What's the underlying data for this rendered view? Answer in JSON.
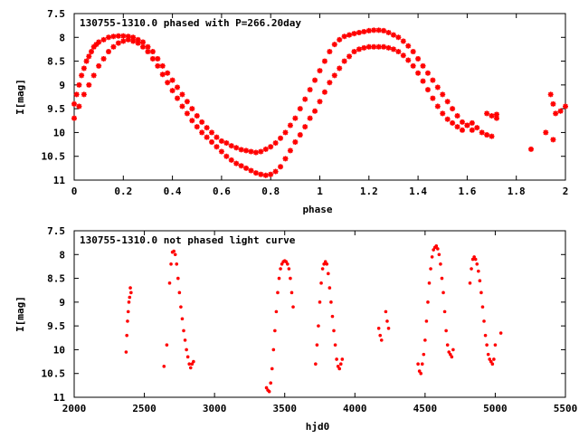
{
  "chart_data": [
    {
      "type": "scatter",
      "title": "130755-1310.0 phased with P=266.20day",
      "xlabel": "phase",
      "ylabel": "I[mag]",
      "xlim": [
        0,
        2
      ],
      "ylim": [
        11,
        7.5
      ],
      "y_inverted": true,
      "xticks": [
        "0",
        "0.2",
        "0.4",
        "0.6",
        "0.8",
        "1",
        "1.2",
        "1.4",
        "1.6",
        "1.8",
        "2"
      ],
      "yticks": [
        "7.5",
        "8",
        "8.5",
        "9",
        "9.5",
        "10",
        "10.5",
        "11"
      ],
      "marker_color": "#ff0000",
      "grid": false,
      "series": [
        {
          "x": [
            0.0,
            0.01,
            0.02,
            0.03,
            0.04,
            0.05,
            0.06,
            0.07,
            0.08,
            0.09,
            0.1,
            0.12,
            0.14,
            0.16,
            0.18,
            0.2,
            0.22,
            0.24,
            0.26,
            0.28,
            0.3,
            0.32,
            0.34,
            0.36,
            0.38,
            0.4,
            0.42,
            0.44,
            0.46,
            0.48,
            0.5,
            0.52,
            0.54,
            0.56,
            0.58,
            0.6,
            0.62,
            0.64,
            0.66,
            0.68,
            0.7,
            0.72,
            0.74,
            0.76,
            0.78,
            0.8,
            0.82,
            0.84,
            0.86,
            0.88,
            0.9,
            0.92,
            0.94,
            0.96,
            0.98,
            1.0,
            1.02,
            1.04,
            1.06,
            1.08,
            1.1,
            1.12,
            1.14,
            1.16,
            1.18,
            1.2,
            1.22,
            1.24,
            1.26,
            1.28,
            1.3,
            1.32,
            1.34,
            1.36,
            1.38,
            1.4,
            1.42,
            1.44,
            1.46,
            1.48,
            1.5,
            1.52,
            1.54,
            1.56,
            1.58,
            1.6,
            1.62,
            1.68,
            1.7,
            1.72,
            1.94,
            1.95,
            1.96
          ],
          "y": [
            9.4,
            9.2,
            9.0,
            8.8,
            8.65,
            8.5,
            8.4,
            8.3,
            8.2,
            8.15,
            8.1,
            8.05,
            8.0,
            7.98,
            7.97,
            7.97,
            7.98,
            8.0,
            8.05,
            8.1,
            8.2,
            8.3,
            8.45,
            8.6,
            8.75,
            8.9,
            9.05,
            9.2,
            9.35,
            9.5,
            9.65,
            9.78,
            9.9,
            10.0,
            10.1,
            10.18,
            10.22,
            10.28,
            10.32,
            10.36,
            10.38,
            10.4,
            10.42,
            10.4,
            10.35,
            10.3,
            10.22,
            10.12,
            10.0,
            9.85,
            9.7,
            9.5,
            9.3,
            9.1,
            8.9,
            8.7,
            8.5,
            8.3,
            8.15,
            8.05,
            7.98,
            7.95,
            7.92,
            7.9,
            7.88,
            7.86,
            7.85,
            7.85,
            7.86,
            7.9,
            7.95,
            8.0,
            8.08,
            8.18,
            8.3,
            8.45,
            8.6,
            8.75,
            8.9,
            9.05,
            9.2,
            9.35,
            9.5,
            9.65,
            9.78,
            9.85,
            9.95,
            9.6,
            9.65,
            9.7,
            9.2,
            9.4,
            9.6
          ]
        },
        {
          "x": [
            0.0,
            0.02,
            0.04,
            0.06,
            0.08,
            0.1,
            0.12,
            0.14,
            0.16,
            0.18,
            0.2,
            0.22,
            0.24,
            0.26,
            0.28,
            0.3,
            0.32,
            0.34,
            0.36,
            0.38,
            0.4,
            0.42,
            0.44,
            0.46,
            0.48,
            0.5,
            0.52,
            0.54,
            0.56,
            0.58,
            0.6,
            0.62,
            0.64,
            0.66,
            0.68,
            0.7,
            0.72,
            0.74,
            0.76,
            0.78,
            0.8,
            0.82,
            0.84,
            0.86,
            0.88,
            0.9,
            0.92,
            0.94,
            0.96,
            0.98,
            1.0,
            1.02,
            1.04,
            1.06,
            1.08,
            1.1,
            1.12,
            1.14,
            1.16,
            1.18,
            1.2,
            1.22,
            1.24,
            1.26,
            1.28,
            1.3,
            1.32,
            1.34,
            1.36,
            1.38,
            1.4,
            1.42,
            1.44,
            1.46,
            1.48,
            1.5,
            1.52,
            1.54,
            1.56,
            1.58,
            1.6,
            1.62,
            1.64,
            1.66,
            1.68,
            1.7,
            1.72,
            1.86,
            1.92,
            1.95,
            1.98,
            2.0
          ],
          "y": [
            9.7,
            9.45,
            9.2,
            9.0,
            8.8,
            8.6,
            8.45,
            8.3,
            8.2,
            8.12,
            8.08,
            8.05,
            8.08,
            8.12,
            8.2,
            8.3,
            8.45,
            8.6,
            8.78,
            8.95,
            9.12,
            9.28,
            9.45,
            9.6,
            9.75,
            9.88,
            10.0,
            10.1,
            10.2,
            10.3,
            10.4,
            10.5,
            10.58,
            10.65,
            10.7,
            10.75,
            10.8,
            10.85,
            10.88,
            10.9,
            10.88,
            10.82,
            10.72,
            10.55,
            10.38,
            10.2,
            10.05,
            9.88,
            9.7,
            9.55,
            9.35,
            9.15,
            8.95,
            8.8,
            8.65,
            8.5,
            8.4,
            8.3,
            8.25,
            8.22,
            8.2,
            8.2,
            8.2,
            8.2,
            8.22,
            8.25,
            8.3,
            8.38,
            8.48,
            8.6,
            8.75,
            8.92,
            9.1,
            9.28,
            9.45,
            9.6,
            9.72,
            9.8,
            9.88,
            9.95,
            9.85,
            9.8,
            9.9,
            10.0,
            10.05,
            10.08,
            9.62,
            10.35,
            10.0,
            10.15,
            9.55,
            9.45
          ]
        }
      ]
    },
    {
      "type": "scatter",
      "title": "130755-1310.0 not phased light curve",
      "xlabel": "hjd0",
      "ylabel": "I[mag]",
      "xlim": [
        2000,
        5500
      ],
      "ylim": [
        11,
        7.5
      ],
      "y_inverted": true,
      "xticks": [
        "2000",
        "2500",
        "3000",
        "3500",
        "4000",
        "4500",
        "5000",
        "5500"
      ],
      "yticks": [
        "7.5",
        "8",
        "8.5",
        "9",
        "9.5",
        "10",
        "10.5",
        "11"
      ],
      "marker_color": "#ff0000",
      "grid": false,
      "series": [
        {
          "x": [
            2370,
            2375,
            2380,
            2385,
            2390,
            2395,
            2400,
            2405,
            2640,
            2660,
            2680,
            2690,
            2700,
            2710,
            2720,
            2730,
            2740,
            2750,
            2760,
            2770,
            2780,
            2790,
            2800,
            2810,
            2820,
            2830,
            2840,
            2850,
            3370,
            3380,
            3390,
            3400,
            3410,
            3420,
            3430,
            3440,
            3450,
            3460,
            3470,
            3480,
            3490,
            3500,
            3510,
            3520,
            3530,
            3540,
            3550,
            3560,
            3720,
            3730,
            3740,
            3750,
            3760,
            3770,
            3780,
            3790,
            3800,
            3810,
            3820,
            3830,
            3840,
            3850,
            3860,
            3870,
            3880,
            3890,
            3900,
            3910,
            4170,
            4180,
            4190,
            4220,
            4230,
            4240,
            4450,
            4460,
            4470,
            4480,
            4490,
            4500,
            4510,
            4520,
            4530,
            4540,
            4550,
            4560,
            4570,
            4580,
            4590,
            4600,
            4610,
            4620,
            4630,
            4640,
            4650,
            4660,
            4670,
            4680,
            4690,
            4700,
            4820,
            4830,
            4840,
            4850,
            4860,
            4870,
            4880,
            4890,
            4900,
            4910,
            4920,
            4930,
            4940,
            4950,
            4960,
            4970,
            4980,
            4990,
            5000,
            5040
          ],
          "y": [
            10.05,
            9.7,
            9.4,
            9.2,
            9.0,
            8.9,
            8.7,
            8.8,
            10.35,
            9.9,
            8.6,
            8.2,
            7.95,
            7.93,
            8.0,
            8.2,
            8.5,
            8.8,
            9.1,
            9.35,
            9.6,
            9.8,
            10.0,
            10.15,
            10.3,
            10.38,
            10.3,
            10.25,
            10.8,
            10.85,
            10.88,
            10.7,
            10.4,
            10.0,
            9.6,
            9.2,
            8.8,
            8.5,
            8.3,
            8.2,
            8.15,
            8.13,
            8.15,
            8.2,
            8.3,
            8.5,
            8.8,
            9.1,
            10.3,
            9.9,
            9.5,
            9.0,
            8.6,
            8.3,
            8.2,
            8.15,
            8.2,
            8.4,
            8.7,
            9.0,
            9.3,
            9.6,
            9.9,
            10.2,
            10.35,
            10.4,
            10.3,
            10.2,
            9.55,
            9.7,
            9.8,
            9.2,
            9.4,
            9.55,
            10.3,
            10.45,
            10.5,
            10.3,
            10.1,
            9.8,
            9.4,
            9.0,
            8.6,
            8.3,
            8.05,
            7.9,
            7.85,
            7.82,
            7.88,
            8.0,
            8.2,
            8.5,
            8.8,
            9.2,
            9.6,
            9.9,
            10.05,
            10.1,
            10.15,
            10.0,
            8.6,
            8.3,
            8.1,
            8.05,
            8.1,
            8.2,
            8.35,
            8.55,
            8.8,
            9.1,
            9.4,
            9.7,
            9.9,
            10.1,
            10.2,
            10.25,
            10.3,
            10.2,
            9.9,
            9.65
          ]
        }
      ]
    }
  ]
}
